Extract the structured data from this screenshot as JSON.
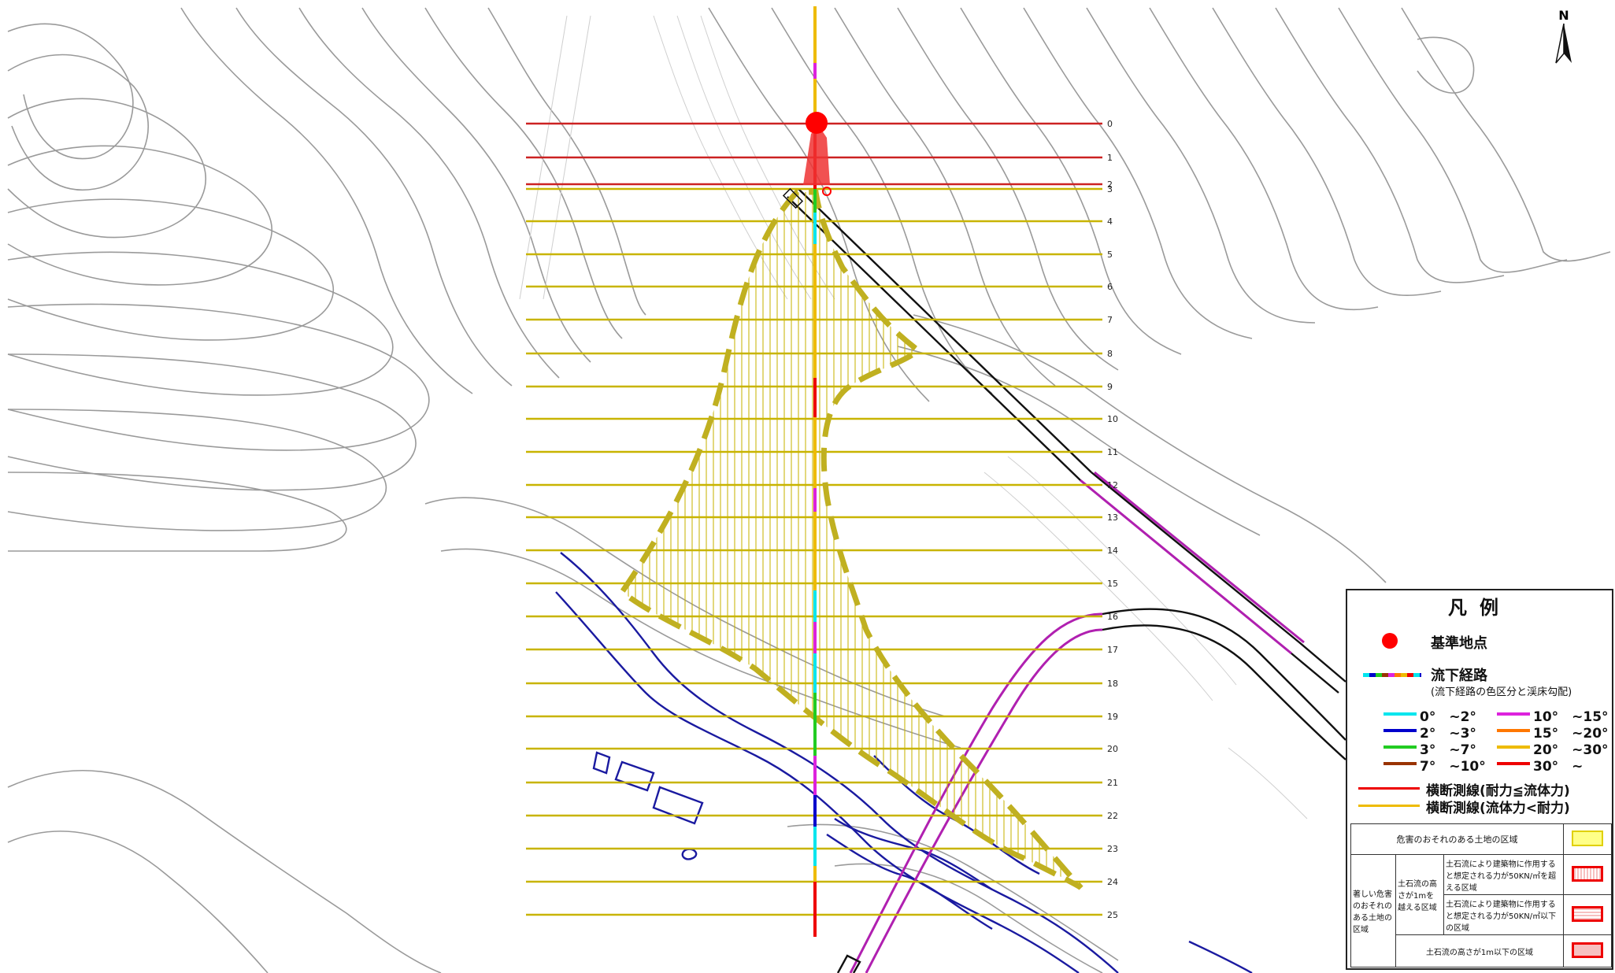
{
  "north_label": "N",
  "legend": {
    "title": "凡例",
    "base_point": "基準地点",
    "flow_path": "流下経路",
    "flow_path_note": "(流下経路の色区分と渓床勾配)",
    "slopes": [
      {
        "label": "0°　~2°",
        "color": "#00e5ee"
      },
      {
        "label": "2°　~3°",
        "color": "#0000cc"
      },
      {
        "label": "3°　~7°",
        "color": "#22cc22"
      },
      {
        "label": "7°　~10°",
        "color": "#993300"
      },
      {
        "label": "10°　~15°",
        "color": "#dd22dd"
      },
      {
        "label": "15°　~20°",
        "color": "#ff7700"
      },
      {
        "label": "20°　~30°",
        "color": "#eebb00"
      },
      {
        "label": "30°　~",
        "color": "#ee0000"
      }
    ],
    "cross_red": "横断測線(耐力≦流体力)",
    "cross_yellow": "横断測線(流体力<耐力)",
    "table": {
      "row1": "危害のおそれのある土地の区域",
      "group": "著しい危害のおそれのある土地の区域",
      "sub": "土石流の高さが1mを越える区域",
      "a": "土石流により建築物に作用すると想定される力が50KN/㎡を超える区域",
      "b": "土石流により建築物に作用すると想定される力が50KN/㎡以下の区域",
      "c": "土石流の高さが1m以下の区域"
    }
  },
  "section_numbers": [
    "0",
    "1",
    "2",
    "3",
    "4",
    "5",
    "6",
    "7",
    "8",
    "9",
    "10",
    "11",
    "12",
    "13",
    "14",
    "15",
    "16",
    "17",
    "18",
    "19",
    "20",
    "21",
    "22",
    "23",
    "24",
    "25"
  ],
  "colors": {
    "red_line": "#cc2222",
    "yellow_line": "#c8b400",
    "hazard_outline": "#c0b020",
    "base_point": "#ff0000",
    "river": "#1a1aa0",
    "road": "#b020b0"
  }
}
